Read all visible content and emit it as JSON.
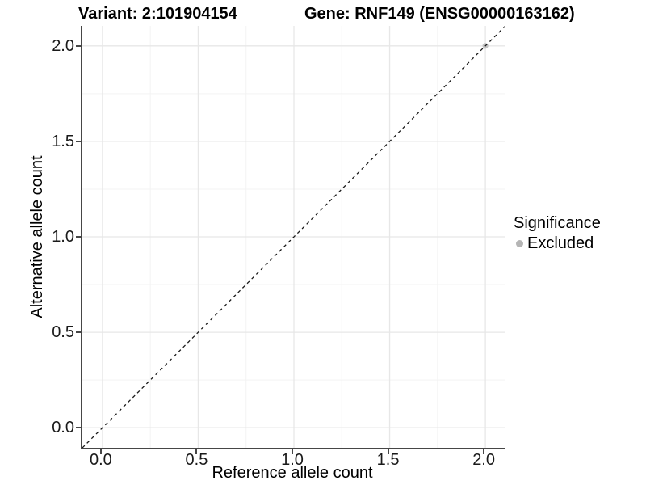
{
  "title": {
    "variant": "Variant: 2:101904154",
    "gene": "Gene: RNF149 (ENSG00000163162)"
  },
  "legend": {
    "title": "Significance",
    "items": [
      {
        "label": "Excluded",
        "color": "#b5b5b5"
      }
    ]
  },
  "colors": {
    "axis_line": "#464646",
    "tick_text": "#1a1a1a",
    "grid_major": "#e7e7e7",
    "grid_minor": "#f3f3f3",
    "reference_line": "#1a1a1a",
    "point_excluded": "#c3c3c3"
  },
  "chart_data": {
    "type": "scatter",
    "title": "Variant: 2:101904154 | Gene: RNF149 (ENSG00000163162)",
    "xlabel": "Reference allele count",
    "ylabel": "Alternative allele count",
    "xlim": [
      -0.105,
      2.105
    ],
    "ylim": [
      -0.105,
      2.105
    ],
    "x_ticks": [
      0.0,
      0.5,
      1.0,
      1.5,
      2.0
    ],
    "y_ticks": [
      0.0,
      0.5,
      1.0,
      1.5,
      2.0
    ],
    "grid": "major+minor",
    "legend_position": "right",
    "series": [
      {
        "name": "Excluded",
        "color": "#c3c3c3",
        "points": [
          {
            "x": 2.0,
            "y": 2.0
          }
        ]
      }
    ],
    "reference_line": {
      "slope": 1,
      "intercept": 0,
      "style": "dashed",
      "color": "#1a1a1a"
    }
  }
}
